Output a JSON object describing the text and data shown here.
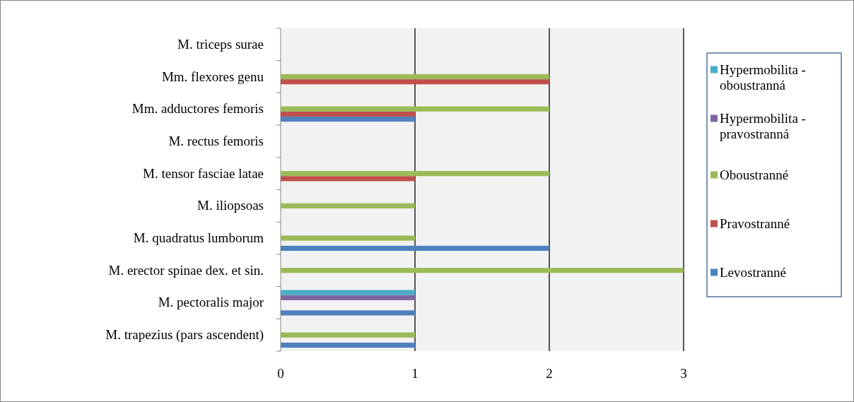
{
  "chart_data": {
    "type": "bar",
    "orientation": "horizontal",
    "categories": [
      "M. triceps surae",
      "Mm. flexores genu",
      "Mm. adductores femoris",
      "M. rectus femoris",
      "M. tensor fasciae latae",
      "M. iliopsoas",
      "M. quadratus lumborum",
      "M. erector spinae dex. et sin.",
      "M. pectoralis major",
      "M. trapezius (pars ascendent)"
    ],
    "series": [
      {
        "name": "Levostranné",
        "color": "#4f81bd",
        "values": [
          0,
          0,
          1,
          0,
          0,
          0,
          2,
          0,
          1,
          1
        ]
      },
      {
        "name": "Pravostranné",
        "color": "#c0504d",
        "values": [
          0,
          2,
          1,
          0,
          1,
          0,
          0,
          0,
          0,
          0
        ]
      },
      {
        "name": "Oboustranné",
        "color": "#9bbb59",
        "values": [
          0,
          2,
          2,
          0,
          2,
          1,
          1,
          3,
          0,
          1
        ]
      },
      {
        "name": "Hypermobilita - pravostranná",
        "color": "#8064a2",
        "values": [
          0,
          0,
          0,
          0,
          0,
          0,
          0,
          0,
          1,
          0
        ]
      },
      {
        "name": "Hypermobilita - oboustranná",
        "color": "#4bacc6",
        "values": [
          0,
          0,
          0,
          0,
          0,
          0,
          0,
          0,
          1,
          0
        ]
      }
    ],
    "xlim": [
      0,
      3
    ],
    "xticks": [
      0,
      1,
      2,
      3
    ],
    "grid": "x",
    "legend": "right"
  }
}
